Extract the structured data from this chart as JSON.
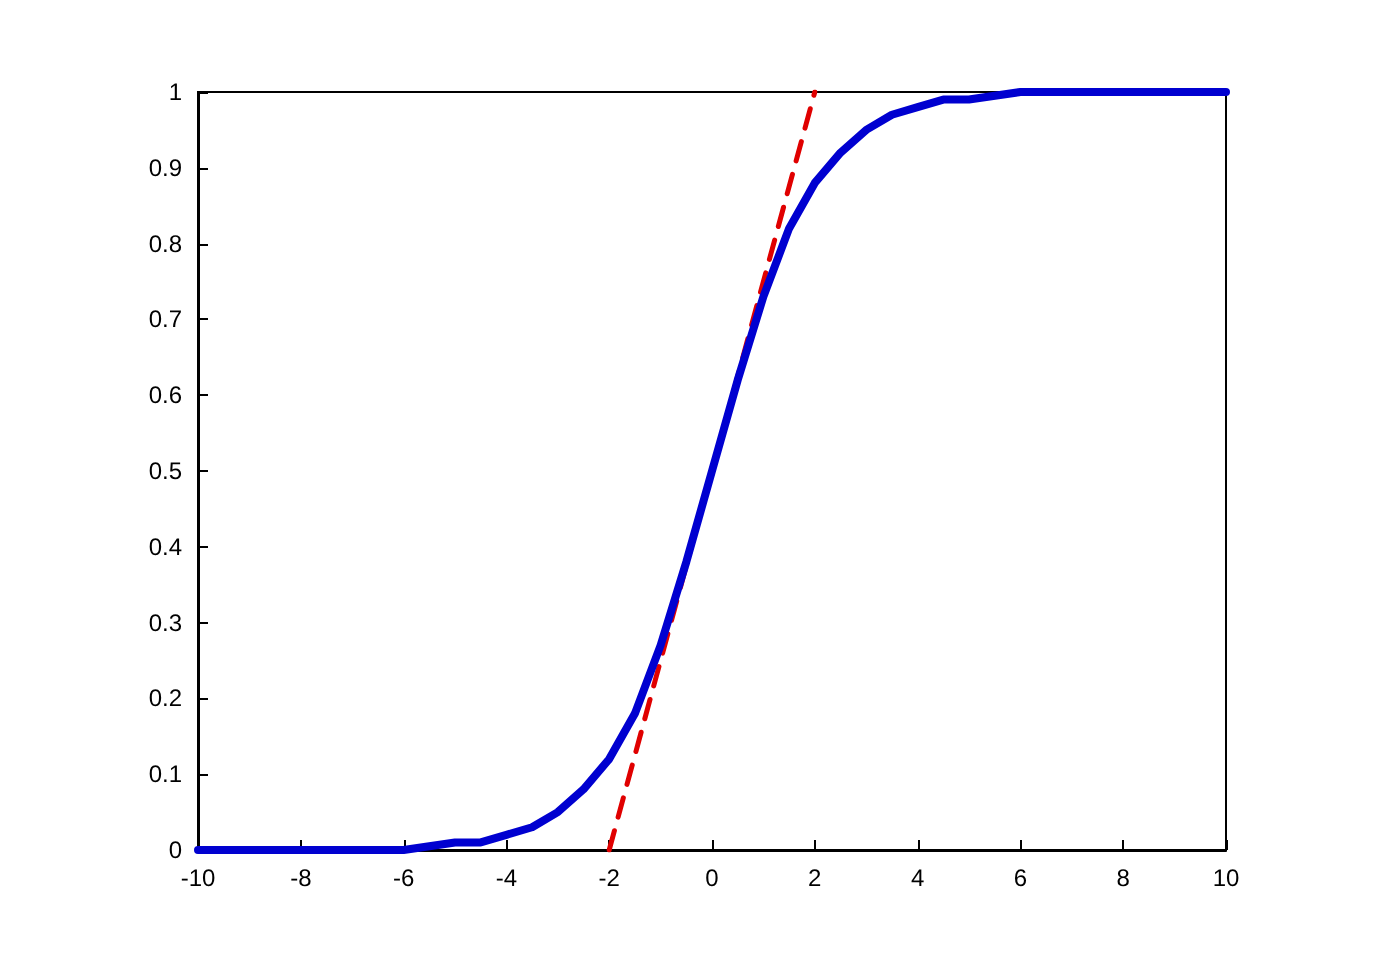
{
  "chart_data": {
    "type": "line",
    "xlim": [
      -10,
      10
    ],
    "ylim": [
      0,
      1
    ],
    "xticks": [
      -10,
      -8,
      -6,
      -4,
      -2,
      0,
      2,
      4,
      6,
      8,
      10
    ],
    "yticks": [
      0,
      0.1,
      0.2,
      0.3,
      0.4,
      0.5,
      0.6,
      0.7,
      0.8,
      0.9,
      1
    ],
    "grid": false,
    "marker": "none",
    "series": [
      {
        "color": "#0000d0",
        "line_style": "solid",
        "x": [
          -10,
          -9,
          -8,
          -7,
          -6,
          -5,
          -4.5,
          -4,
          -3.5,
          -3,
          -2.5,
          -2,
          -1.5,
          -1,
          -0.5,
          0,
          0.5,
          1,
          1.5,
          2,
          2.5,
          3,
          3.5,
          4,
          4.5,
          5,
          6,
          7,
          8,
          9,
          10
        ],
        "values": [
          0,
          0,
          0,
          0,
          0,
          0.01,
          0.01,
          0.02,
          0.03,
          0.05,
          0.08,
          0.12,
          0.18,
          0.27,
          0.38,
          0.5,
          0.62,
          0.73,
          0.82,
          0.88,
          0.92,
          0.95,
          0.97,
          0.98,
          0.99,
          0.99,
          1,
          1,
          1,
          1,
          1
        ]
      },
      {
        "color": "#e00000",
        "line_style": "dashed",
        "x": [
          -2,
          2
        ],
        "values": [
          0,
          1
        ]
      }
    ]
  }
}
